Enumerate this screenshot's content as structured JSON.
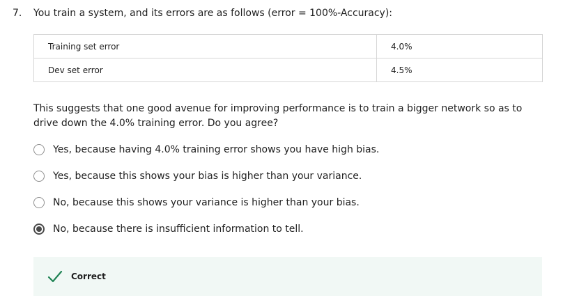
{
  "question": {
    "number": "7.",
    "text": "You train a system, and its errors are as follows (error = 100%-Accuracy):"
  },
  "table": {
    "rows": [
      {
        "label": "Training set error",
        "value": "4.0%"
      },
      {
        "label": "Dev set error",
        "value": "4.5%"
      }
    ]
  },
  "prompt": "This suggests that one good avenue for improving performance is to train a bigger network so as to drive down the 4.0% training error. Do you agree?",
  "options": [
    {
      "label": "Yes, because having 4.0% training error shows you have high bias.",
      "selected": false
    },
    {
      "label": "Yes, because this shows your bias is higher than your variance.",
      "selected": false
    },
    {
      "label": "No, because this shows your variance is higher than your bias.",
      "selected": false
    },
    {
      "label": "No, because there is insufficient information to tell.",
      "selected": true
    }
  ],
  "feedback": {
    "label": "Correct",
    "icon": "check-icon",
    "color": "#1f8354"
  }
}
